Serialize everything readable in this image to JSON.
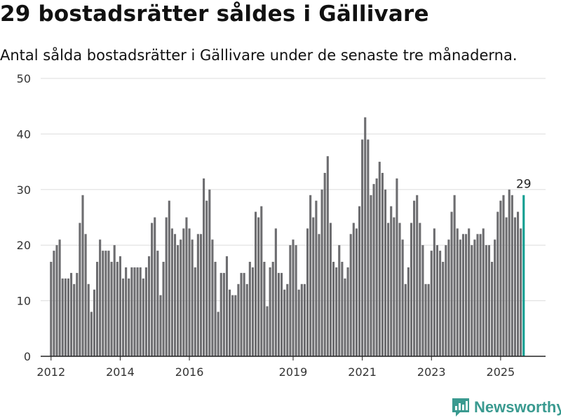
{
  "header": {
    "title": "29 bostadsrätter såldes i Gällivare",
    "subtitle": "Antal sålda bostadsrätter i Gällivare under de senaste tre månaderna."
  },
  "brand": {
    "name": "Newsworthy",
    "icon": "newsworthy-logo-icon",
    "color": "#3a9a90"
  },
  "colors": {
    "bar": "#6d6d70",
    "highlight": "#0e9e91",
    "grid": "#dddddd"
  },
  "chart_data": {
    "type": "bar",
    "title": "29 bostadsrätter såldes i Gällivare",
    "subtitle": "Antal sålda bostadsrätter i Gällivare under de senaste tre månaderna.",
    "ylim": [
      0,
      50
    ],
    "yticks": [
      0,
      10,
      20,
      30,
      40,
      50
    ],
    "xlim": [
      2011.7,
      2026.3
    ],
    "xticks": [
      2012,
      2014,
      2016,
      2019,
      2021,
      2023,
      2025
    ],
    "grid": true,
    "start": 2012.0,
    "step": 0.0833333,
    "highlight_label": "29",
    "values": [
      17,
      19,
      20,
      21,
      14,
      14,
      14,
      15,
      13,
      15,
      24,
      29,
      22,
      13,
      8,
      12,
      17,
      21,
      19,
      19,
      19,
      17,
      20,
      17,
      18,
      14,
      16,
      14,
      16,
      16,
      16,
      16,
      14,
      16,
      18,
      24,
      25,
      19,
      11,
      17,
      25,
      28,
      23,
      22,
      20,
      21,
      23,
      25,
      23,
      21,
      16,
      22,
      22,
      32,
      28,
      30,
      21,
      17,
      8,
      15,
      15,
      18,
      12,
      11,
      11,
      13,
      15,
      15,
      13,
      17,
      16,
      26,
      25,
      27,
      17,
      9,
      16,
      17,
      23,
      15,
      15,
      12,
      13,
      20,
      21,
      20,
      12,
      13,
      13,
      23,
      29,
      25,
      28,
      22,
      30,
      33,
      36,
      24,
      17,
      16,
      20,
      17,
      14,
      16,
      22,
      24,
      23,
      27,
      39,
      43,
      39,
      29,
      31,
      32,
      35,
      33,
      30,
      24,
      27,
      25,
      32,
      24,
      21,
      13,
      16,
      24,
      28,
      29,
      24,
      20,
      13,
      13,
      19,
      23,
      20,
      19,
      17,
      20,
      21,
      26,
      29,
      23,
      21,
      22,
      22,
      23,
      20,
      21,
      22,
      22,
      23,
      20,
      20,
      17,
      21,
      26,
      28,
      29,
      25,
      30,
      29,
      25,
      26,
      23,
      29
    ]
  }
}
